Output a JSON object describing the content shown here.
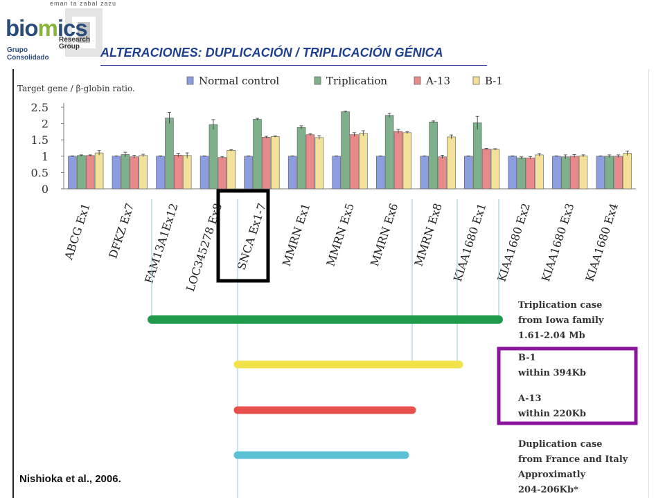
{
  "header": {
    "logo_top": "eman ta zabal zazu",
    "logo_word_a": "bio",
    "logo_word_b": "m",
    "logo_word_c": "ics",
    "logo_research_a": "Research",
    "logo_research_b": "Group",
    "logo_grupo_a": "Grupo",
    "logo_grupo_b": "Consolidado",
    "title": "ALTERACIONES: DUPLICACIÓN / TRIPLICACIÓN GÉNICA",
    "accent_color": "#1f3f8f"
  },
  "chart_data": {
    "type": "bar",
    "ylabel": "Target gene / β-globin ratio.",
    "ylim": [
      0,
      2.5
    ],
    "yticks": [
      "0",
      "0.5",
      "1",
      "1.5",
      "2",
      "2.5"
    ],
    "categories": [
      "ABCG Ex1",
      "DFKZ Ex7",
      "FAM13A1Ex12",
      "LOC345278 Ex8",
      "SNCA Ex1-7",
      "MMRN Ex1",
      "MMRN Ex5",
      "MMRN Ex6",
      "MMRN Ex8",
      "KIAA1680 Ex1",
      "KIAA1680 Ex2",
      "KIAA1680 Ex3",
      "KIAA1680 Ex4"
    ],
    "series": [
      {
        "name": "Normal control",
        "color": "#8c9ee0",
        "values": [
          1.0,
          1.0,
          1.0,
          1.0,
          1.0,
          1.0,
          1.0,
          1.0,
          1.0,
          1.0,
          1.0,
          1.0,
          1.0
        ],
        "errors": [
          0.01,
          0.01,
          0.01,
          0.01,
          0.01,
          0.01,
          0.01,
          0.01,
          0.01,
          0.01,
          0.01,
          0.01,
          0.01
        ]
      },
      {
        "name": "Triplication",
        "color": "#7fb08c",
        "values": [
          1.02,
          1.05,
          2.17,
          1.97,
          2.13,
          1.88,
          2.36,
          2.25,
          2.05,
          2.02,
          0.95,
          0.98,
          1.0
        ],
        "errors": [
          0.02,
          0.07,
          0.17,
          0.15,
          0.03,
          0.05,
          0.02,
          0.06,
          0.03,
          0.2,
          0.03,
          0.06,
          0.04
        ]
      },
      {
        "name": "A-13",
        "color": "#e88a8a",
        "values": [
          1.02,
          0.98,
          1.03,
          0.96,
          1.58,
          1.66,
          1.66,
          1.76,
          0.98,
          1.22,
          0.95,
          1.0,
          1.0
        ],
        "errors": [
          0.02,
          0.05,
          0.06,
          0.03,
          0.03,
          0.03,
          0.06,
          0.06,
          0.05,
          0.02,
          0.04,
          0.05,
          0.04
        ]
      },
      {
        "name": "B-1",
        "color": "#f3e19a",
        "values": [
          1.1,
          1.02,
          1.02,
          1.18,
          1.6,
          1.57,
          1.7,
          1.72,
          1.59,
          1.21,
          1.04,
          1.01,
          1.09
        ],
        "errors": [
          0.07,
          0.04,
          0.08,
          0.02,
          0.02,
          0.06,
          0.08,
          0.03,
          0.06,
          0.02,
          0.04,
          0.03,
          0.07
        ]
      }
    ],
    "legend_position": "top",
    "grid": false
  },
  "region_bars": [
    {
      "color": "#1f9a4a"
    },
    {
      "color": "#f2e34a"
    },
    {
      "color": "#e8504e"
    },
    {
      "color": "#5bc2d6"
    }
  ],
  "annotations": {
    "triplication": [
      "Triplication case",
      "from Iowa family",
      "1.61-2.04 Mb"
    ],
    "b1": [
      "B-1",
      "within 394Kb"
    ],
    "a13": [
      "A-13",
      "within 220Kb"
    ],
    "duplication": [
      "Duplication case",
      "from France and Italy",
      "Approximatly",
      "204-206Kb*"
    ]
  },
  "highlight_colors": {
    "snca_box": "#000000",
    "annotation_box": "#8b159c"
  },
  "citation": "Nishioka et al., 2006."
}
